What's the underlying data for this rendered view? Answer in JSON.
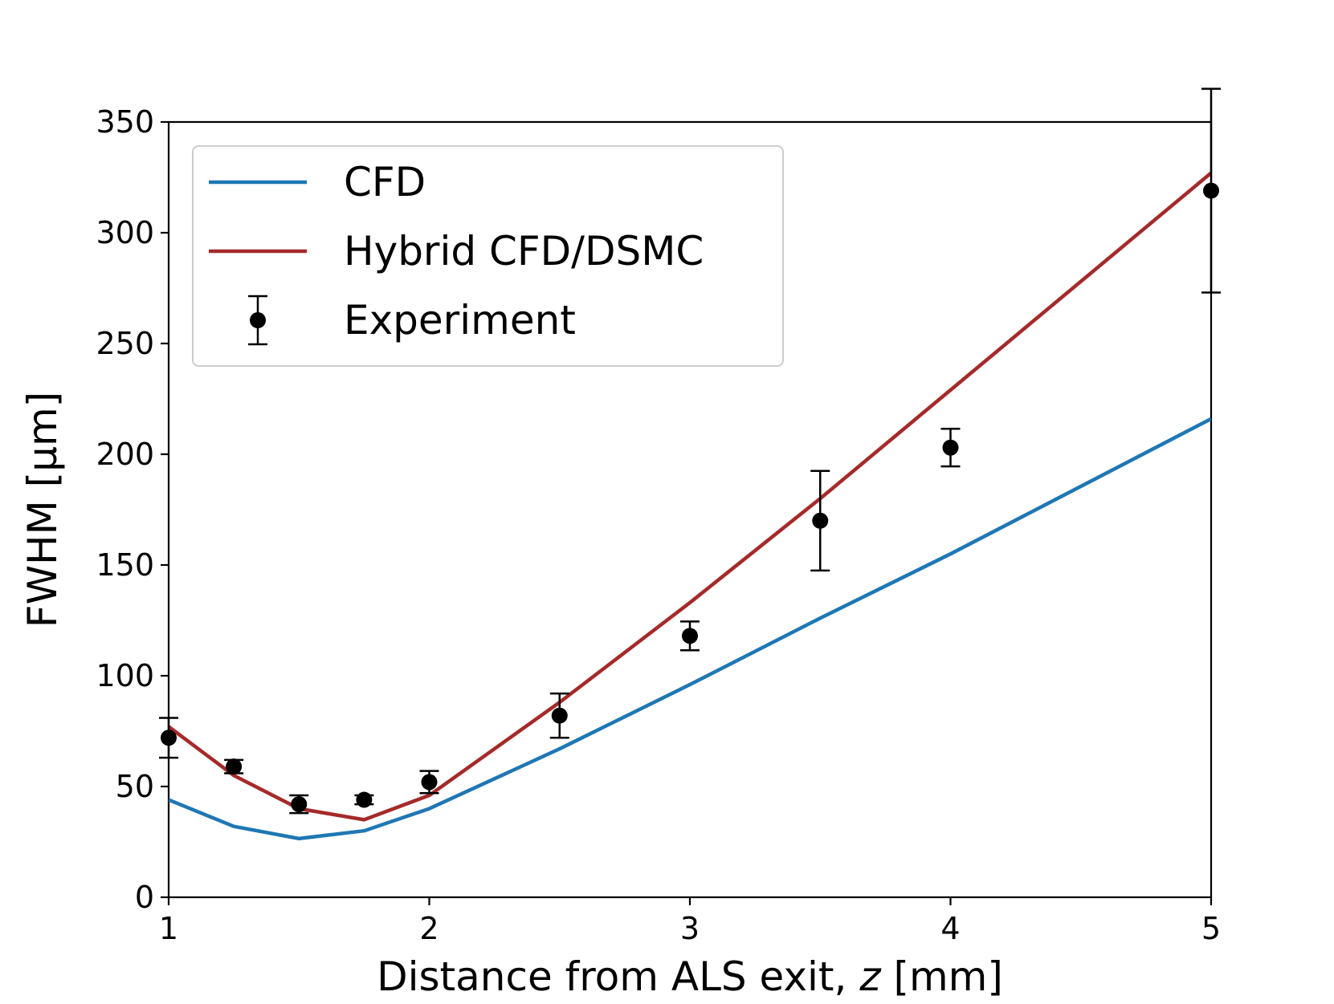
{
  "chart_data": {
    "type": "line",
    "title": "",
    "xlabel": "Distance from ALS exit, z [mm]",
    "xlabel_parts": {
      "before": "Distance from ALS exit, ",
      "var": "z",
      "after": " [mm]"
    },
    "ylabel": "FWHM [μm]",
    "xlim": [
      1,
      5
    ],
    "ylim": [
      0,
      350
    ],
    "xticks": [
      1,
      2,
      3,
      4,
      5
    ],
    "yticks": [
      0,
      50,
      100,
      150,
      200,
      250,
      300,
      350
    ],
    "grid": false,
    "legend_position": "top-left",
    "series": [
      {
        "name": "CFD",
        "kind": "line",
        "color": "#1f77b4",
        "x": [
          1,
          1.25,
          1.5,
          1.75,
          2,
          2.5,
          3,
          3.5,
          4,
          5
        ],
        "y": [
          44,
          32,
          26.5,
          30,
          40,
          67,
          96,
          126,
          155,
          216
        ]
      },
      {
        "name": "Hybrid CFD/DSMC",
        "kind": "line",
        "color": "#a52a2a",
        "x": [
          1,
          1.25,
          1.5,
          1.75,
          2,
          2.5,
          3,
          3.5,
          4,
          5
        ],
        "y": [
          77,
          55,
          40,
          35,
          46,
          88,
          133,
          180,
          229,
          327
        ]
      },
      {
        "name": "Experiment",
        "kind": "errorbar",
        "color": "#000000",
        "x": [
          1,
          1.25,
          1.5,
          1.75,
          2,
          2.5,
          3,
          3.5,
          4,
          5
        ],
        "y": [
          72,
          59,
          42,
          44,
          52,
          82,
          118,
          170,
          203,
          319
        ],
        "yerr": [
          9,
          3,
          4,
          2,
          5,
          10,
          6.5,
          22.5,
          8.5,
          46
        ]
      }
    ]
  }
}
